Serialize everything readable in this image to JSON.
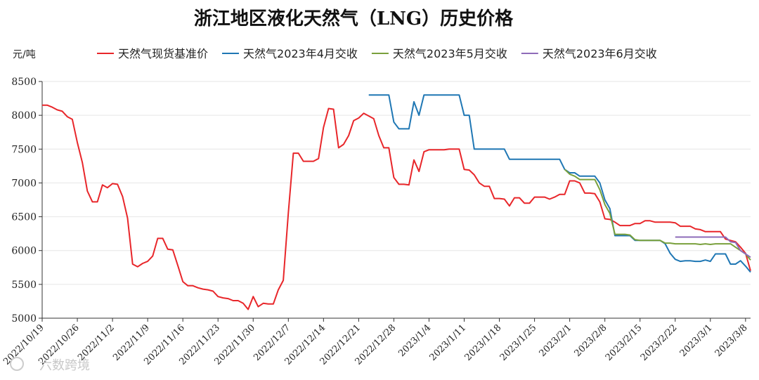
{
  "chart_data": {
    "type": "line",
    "title": "浙江地区液化天然气（LNG）历史价格",
    "ylabel": "元/吨",
    "ylim": [
      5000,
      8500
    ],
    "yticks": [
      5000,
      5500,
      6000,
      6500,
      7000,
      7500,
      8000,
      8500
    ],
    "x_start": "2022/10/19",
    "x_end": "2023/3/9",
    "xticks": [
      "2022/10/19",
      "2022/10/26",
      "2022/11/2",
      "2022/11/9",
      "2022/11/16",
      "2022/11/23",
      "2022/11/30",
      "2022/12/7",
      "2022/12/14",
      "2022/12/21",
      "2022/12/28",
      "2023/1/4",
      "2023/1/11",
      "2023/1/18",
      "2023/1/25",
      "2023/2/1",
      "2023/2/8",
      "2023/2/15",
      "2023/2/22",
      "2023/3/1",
      "2023/3/8"
    ],
    "grid": true,
    "legend_position": "top",
    "series": [
      {
        "name": "天然气现货基准价",
        "color": "#e8262a",
        "points": [
          [
            "2022/10/19",
            8150
          ],
          [
            "2022/10/20",
            8150
          ],
          [
            "2022/10/21",
            8120
          ],
          [
            "2022/10/22",
            8080
          ],
          [
            "2022/10/23",
            8060
          ],
          [
            "2022/10/24",
            7980
          ],
          [
            "2022/10/25",
            7940
          ],
          [
            "2022/10/26",
            7600
          ],
          [
            "2022/10/27",
            7300
          ],
          [
            "2022/10/28",
            6880
          ],
          [
            "2022/10/29",
            6720
          ],
          [
            "2022/10/30",
            6720
          ],
          [
            "2022/10/31",
            6970
          ],
          [
            "2022/11/1",
            6930
          ],
          [
            "2022/11/2",
            6990
          ],
          [
            "2022/11/3",
            6980
          ],
          [
            "2022/11/4",
            6800
          ],
          [
            "2022/11/5",
            6480
          ],
          [
            "2022/11/6",
            5800
          ],
          [
            "2022/11/7",
            5760
          ],
          [
            "2022/11/8",
            5810
          ],
          [
            "2022/11/9",
            5840
          ],
          [
            "2022/11/10",
            5920
          ],
          [
            "2022/11/11",
            6180
          ],
          [
            "2022/11/12",
            6180
          ],
          [
            "2022/11/13",
            6020
          ],
          [
            "2022/11/14",
            6010
          ],
          [
            "2022/11/15",
            5780
          ],
          [
            "2022/11/16",
            5540
          ],
          [
            "2022/11/17",
            5480
          ],
          [
            "2022/11/18",
            5480
          ],
          [
            "2022/11/19",
            5450
          ],
          [
            "2022/11/20",
            5430
          ],
          [
            "2022/11/21",
            5420
          ],
          [
            "2022/11/22",
            5400
          ],
          [
            "2022/11/23",
            5320
          ],
          [
            "2022/11/24",
            5300
          ],
          [
            "2022/11/25",
            5290
          ],
          [
            "2022/11/26",
            5260
          ],
          [
            "2022/11/27",
            5260
          ],
          [
            "2022/11/28",
            5220
          ],
          [
            "2022/11/29",
            5130
          ],
          [
            "2022/11/30",
            5320
          ],
          [
            "2022/12/1",
            5170
          ],
          [
            "2022/12/2",
            5220
          ],
          [
            "2022/12/3",
            5210
          ],
          [
            "2022/12/4",
            5210
          ],
          [
            "2022/12/5",
            5420
          ],
          [
            "2022/12/6",
            5560
          ],
          [
            "2022/12/7",
            6560
          ],
          [
            "2022/12/8",
            7440
          ],
          [
            "2022/12/9",
            7440
          ],
          [
            "2022/12/10",
            7320
          ],
          [
            "2022/12/11",
            7320
          ],
          [
            "2022/12/12",
            7320
          ],
          [
            "2022/12/13",
            7360
          ],
          [
            "2022/12/14",
            7820
          ],
          [
            "2022/12/15",
            8100
          ],
          [
            "2022/12/16",
            8090
          ],
          [
            "2022/12/17",
            7520
          ],
          [
            "2022/12/18",
            7570
          ],
          [
            "2022/12/19",
            7700
          ],
          [
            "2022/12/20",
            7920
          ],
          [
            "2022/12/21",
            7960
          ],
          [
            "2022/12/22",
            8030
          ],
          [
            "2022/12/23",
            7990
          ],
          [
            "2022/12/24",
            7950
          ],
          [
            "2022/12/25",
            7700
          ],
          [
            "2022/12/26",
            7520
          ],
          [
            "2022/12/27",
            7520
          ],
          [
            "2022/12/28",
            7080
          ],
          [
            "2022/12/29",
            6980
          ],
          [
            "2022/12/30",
            6980
          ],
          [
            "2022/12/31",
            6970
          ],
          [
            "2023/1/1",
            7340
          ],
          [
            "2023/1/2",
            7170
          ],
          [
            "2023/1/3",
            7460
          ],
          [
            "2023/1/4",
            7490
          ],
          [
            "2023/1/5",
            7490
          ],
          [
            "2023/1/6",
            7490
          ],
          [
            "2023/1/7",
            7490
          ],
          [
            "2023/1/8",
            7500
          ],
          [
            "2023/1/9",
            7500
          ],
          [
            "2023/1/10",
            7500
          ],
          [
            "2023/1/11",
            7200
          ],
          [
            "2023/1/12",
            7190
          ],
          [
            "2023/1/13",
            7120
          ],
          [
            "2023/1/14",
            7000
          ],
          [
            "2023/1/15",
            6950
          ],
          [
            "2023/1/16",
            6950
          ],
          [
            "2023/1/17",
            6770
          ],
          [
            "2023/1/18",
            6770
          ],
          [
            "2023/1/19",
            6760
          ],
          [
            "2023/1/20",
            6660
          ],
          [
            "2023/1/21",
            6780
          ],
          [
            "2023/1/22",
            6780
          ],
          [
            "2023/1/23",
            6700
          ],
          [
            "2023/1/24",
            6700
          ],
          [
            "2023/1/25",
            6790
          ],
          [
            "2023/1/26",
            6790
          ],
          [
            "2023/1/27",
            6790
          ],
          [
            "2023/1/28",
            6760
          ],
          [
            "2023/1/29",
            6790
          ],
          [
            "2023/1/30",
            6830
          ],
          [
            "2023/1/31",
            6830
          ],
          [
            "2023/2/1",
            7030
          ],
          [
            "2023/2/2",
            7030
          ],
          [
            "2023/2/3",
            7000
          ],
          [
            "2023/2/4",
            6850
          ],
          [
            "2023/2/5",
            6850
          ],
          [
            "2023/2/6",
            6840
          ],
          [
            "2023/2/7",
            6720
          ],
          [
            "2023/2/8",
            6470
          ],
          [
            "2023/2/9",
            6460
          ],
          [
            "2023/2/10",
            6420
          ],
          [
            "2023/2/11",
            6370
          ],
          [
            "2023/2/12",
            6370
          ],
          [
            "2023/2/13",
            6370
          ],
          [
            "2023/2/14",
            6400
          ],
          [
            "2023/2/15",
            6400
          ],
          [
            "2023/2/16",
            6440
          ],
          [
            "2023/2/17",
            6440
          ],
          [
            "2023/2/18",
            6420
          ],
          [
            "2023/2/19",
            6420
          ],
          [
            "2023/2/20",
            6420
          ],
          [
            "2023/2/21",
            6420
          ],
          [
            "2023/2/22",
            6410
          ],
          [
            "2023/2/23",
            6360
          ],
          [
            "2023/2/24",
            6360
          ],
          [
            "2023/2/25",
            6360
          ],
          [
            "2023/2/26",
            6320
          ],
          [
            "2023/2/27",
            6310
          ],
          [
            "2023/2/28",
            6280
          ],
          [
            "2023/3/1",
            6280
          ],
          [
            "2023/3/2",
            6280
          ],
          [
            "2023/3/3",
            6280
          ],
          [
            "2023/3/4",
            6170
          ],
          [
            "2023/3/5",
            6150
          ],
          [
            "2023/3/6",
            6130
          ],
          [
            "2023/3/7",
            6050
          ],
          [
            "2023/3/8",
            5960
          ],
          [
            "2023/3/9",
            5700
          ]
        ]
      },
      {
        "name": "天然气2023年4月交收",
        "color": "#1f77b4",
        "points": [
          [
            "2022/12/23",
            8300
          ],
          [
            "2022/12/24",
            8300
          ],
          [
            "2022/12/25",
            8300
          ],
          [
            "2022/12/26",
            8300
          ],
          [
            "2022/12/27",
            8300
          ],
          [
            "2022/12/28",
            7900
          ],
          [
            "2022/12/29",
            7800
          ],
          [
            "2022/12/30",
            7800
          ],
          [
            "2022/12/31",
            7800
          ],
          [
            "2023/1/1",
            8200
          ],
          [
            "2023/1/2",
            8000
          ],
          [
            "2023/1/3",
            8300
          ],
          [
            "2023/1/4",
            8300
          ],
          [
            "2023/1/5",
            8300
          ],
          [
            "2023/1/6",
            8300
          ],
          [
            "2023/1/7",
            8300
          ],
          [
            "2023/1/8",
            8300
          ],
          [
            "2023/1/9",
            8300
          ],
          [
            "2023/1/10",
            8300
          ],
          [
            "2023/1/11",
            8000
          ],
          [
            "2023/1/12",
            8000
          ],
          [
            "2023/1/13",
            7500
          ],
          [
            "2023/1/14",
            7500
          ],
          [
            "2023/1/15",
            7500
          ],
          [
            "2023/1/16",
            7500
          ],
          [
            "2023/1/17",
            7500
          ],
          [
            "2023/1/18",
            7500
          ],
          [
            "2023/1/19",
            7500
          ],
          [
            "2023/1/20",
            7350
          ],
          [
            "2023/1/21",
            7350
          ],
          [
            "2023/1/22",
            7350
          ],
          [
            "2023/1/23",
            7350
          ],
          [
            "2023/1/24",
            7350
          ],
          [
            "2023/1/25",
            7350
          ],
          [
            "2023/1/26",
            7350
          ],
          [
            "2023/1/27",
            7350
          ],
          [
            "2023/1/28",
            7350
          ],
          [
            "2023/1/29",
            7350
          ],
          [
            "2023/1/30",
            7350
          ],
          [
            "2023/1/31",
            7200
          ],
          [
            "2023/2/1",
            7150
          ],
          [
            "2023/2/2",
            7150
          ],
          [
            "2023/2/3",
            7100
          ],
          [
            "2023/2/4",
            7100
          ],
          [
            "2023/2/5",
            7100
          ],
          [
            "2023/2/6",
            7100
          ],
          [
            "2023/2/7",
            7000
          ],
          [
            "2023/2/8",
            6750
          ],
          [
            "2023/2/9",
            6620
          ],
          [
            "2023/2/10",
            6220
          ],
          [
            "2023/2/11",
            6220
          ],
          [
            "2023/2/12",
            6220
          ],
          [
            "2023/2/13",
            6220
          ],
          [
            "2023/2/14",
            6150
          ],
          [
            "2023/2/15",
            6150
          ],
          [
            "2023/2/16",
            6150
          ],
          [
            "2023/2/17",
            6150
          ],
          [
            "2023/2/18",
            6150
          ],
          [
            "2023/2/19",
            6150
          ],
          [
            "2023/2/20",
            6100
          ],
          [
            "2023/2/21",
            5960
          ],
          [
            "2023/2/22",
            5870
          ],
          [
            "2023/2/23",
            5840
          ],
          [
            "2023/2/24",
            5850
          ],
          [
            "2023/2/25",
            5850
          ],
          [
            "2023/2/26",
            5840
          ],
          [
            "2023/2/27",
            5840
          ],
          [
            "2023/2/28",
            5860
          ],
          [
            "2023/3/1",
            5840
          ],
          [
            "2023/3/2",
            5950
          ],
          [
            "2023/3/3",
            5950
          ],
          [
            "2023/3/4",
            5950
          ],
          [
            "2023/3/5",
            5800
          ],
          [
            "2023/3/6",
            5800
          ],
          [
            "2023/3/7",
            5850
          ],
          [
            "2023/3/8",
            5770
          ],
          [
            "2023/3/9",
            5680
          ]
        ]
      },
      {
        "name": "天然气2023年5月交收",
        "color": "#79a03c",
        "points": [
          [
            "2023/1/31",
            7200
          ],
          [
            "2023/2/1",
            7130
          ],
          [
            "2023/2/2",
            7100
          ],
          [
            "2023/2/3",
            7050
          ],
          [
            "2023/2/4",
            7050
          ],
          [
            "2023/2/5",
            7050
          ],
          [
            "2023/2/6",
            7050
          ],
          [
            "2023/2/7",
            6900
          ],
          [
            "2023/2/8",
            6680
          ],
          [
            "2023/2/9",
            6550
          ],
          [
            "2023/2/10",
            6240
          ],
          [
            "2023/2/11",
            6240
          ],
          [
            "2023/2/12",
            6240
          ],
          [
            "2023/2/13",
            6230
          ],
          [
            "2023/2/14",
            6160
          ],
          [
            "2023/2/15",
            6150
          ],
          [
            "2023/2/16",
            6150
          ],
          [
            "2023/2/17",
            6150
          ],
          [
            "2023/2/18",
            6150
          ],
          [
            "2023/2/19",
            6150
          ],
          [
            "2023/2/20",
            6110
          ],
          [
            "2023/2/21",
            6110
          ],
          [
            "2023/2/22",
            6100
          ],
          [
            "2023/2/23",
            6100
          ],
          [
            "2023/2/24",
            6100
          ],
          [
            "2023/2/25",
            6100
          ],
          [
            "2023/2/26",
            6100
          ],
          [
            "2023/2/27",
            6090
          ],
          [
            "2023/2/28",
            6100
          ],
          [
            "2023/3/1",
            6090
          ],
          [
            "2023/3/2",
            6100
          ],
          [
            "2023/3/3",
            6100
          ],
          [
            "2023/3/4",
            6100
          ],
          [
            "2023/3/5",
            6100
          ],
          [
            "2023/3/6",
            6050
          ],
          [
            "2023/3/7",
            6000
          ],
          [
            "2023/3/8",
            5950
          ],
          [
            "2023/3/9",
            5860
          ]
        ]
      },
      {
        "name": "天然气2023年6月交收",
        "color": "#8e6bb8",
        "points": [
          [
            "2023/2/22",
            6200
          ],
          [
            "2023/2/23",
            6200
          ],
          [
            "2023/2/24",
            6200
          ],
          [
            "2023/2/25",
            6200
          ],
          [
            "2023/2/26",
            6200
          ],
          [
            "2023/2/27",
            6200
          ],
          [
            "2023/2/28",
            6200
          ],
          [
            "2023/3/1",
            6200
          ],
          [
            "2023/3/2",
            6200
          ],
          [
            "2023/3/3",
            6200
          ],
          [
            "2023/3/4",
            6200
          ],
          [
            "2023/3/5",
            6130
          ],
          [
            "2023/3/6",
            6120
          ],
          [
            "2023/3/7",
            6000
          ],
          [
            "2023/3/8",
            5950
          ],
          [
            "2023/3/9",
            5900
          ]
        ]
      }
    ]
  },
  "watermark": "六数跨境"
}
